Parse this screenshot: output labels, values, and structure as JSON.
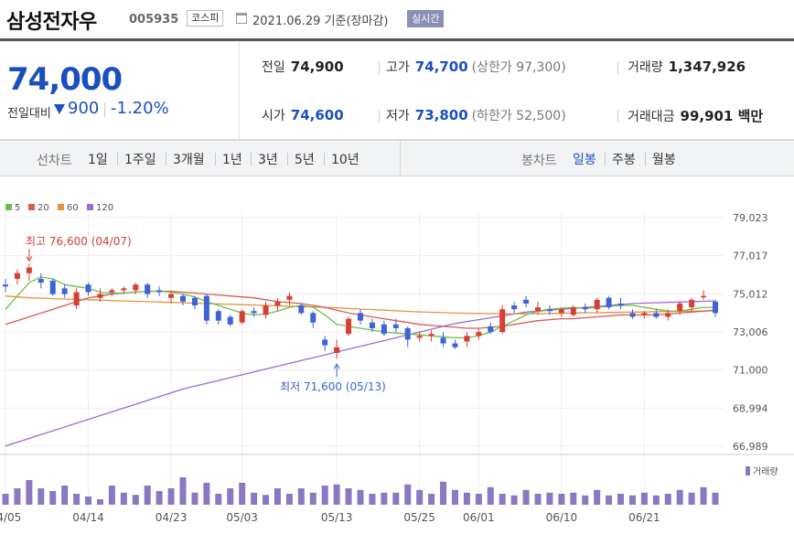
{
  "header": {
    "name": "삼성전자우",
    "code": "005935",
    "market": "코스피",
    "date_text": "2021.06.29 기준(장마감)",
    "realtime": "실시간"
  },
  "quote": {
    "price": "74,000",
    "cmp_label": "전일대비",
    "change": "900",
    "change_rate": "-1.20%",
    "prev_label": "전일",
    "prev": "74,900",
    "high_label": "고가",
    "high": "74,700",
    "upper_limit": "(상한가 97,300)",
    "volume_label": "거래량",
    "volume": "1,347,926",
    "open_label": "시가",
    "open": "74,600",
    "low_label": "저가",
    "low": "73,800",
    "lower_limit": "(하한가 52,500)",
    "amount_label": "거래대금",
    "amount": "99,901 백만"
  },
  "periods": {
    "line_label": "선차트",
    "line_items": [
      "1일",
      "1주일",
      "3개월",
      "1년",
      "3년",
      "5년",
      "10년"
    ],
    "candle_label": "봉차트",
    "candle_items": [
      "일봉",
      "주봉",
      "월봉"
    ],
    "candle_active": 0
  },
  "colors": {
    "up": "#d63f34",
    "down": "#3d63d6",
    "ma5": "#6dbf4b",
    "ma20": "#d95a4e",
    "ma60": "#e8913a",
    "ma120": "#9b6ad6",
    "volume": "#8b78c1",
    "accent": "#1b4fbf"
  },
  "chart_data": {
    "type": "candlestick",
    "legend": [
      {
        "name": "5",
        "color": "#6dbf4b"
      },
      {
        "name": "20",
        "color": "#d95a4e"
      },
      {
        "name": "60",
        "color": "#e8913a"
      },
      {
        "name": "120",
        "color": "#9b6ad6"
      }
    ],
    "y_ticks": [
      "79,023",
      "77,017",
      "75,012",
      "73,006",
      "71,000",
      "68,994",
      "66,989"
    ],
    "ylim": [
      66989,
      79023
    ],
    "x_ticks": [
      {
        "label": "04/05",
        "index": 0
      },
      {
        "label": "04/14",
        "index": 7
      },
      {
        "label": "04/23",
        "index": 14
      },
      {
        "label": "05/03",
        "index": 20
      },
      {
        "label": "05/13",
        "index": 28
      },
      {
        "label": "05/25",
        "index": 35
      },
      {
        "label": "06/01",
        "index": 40
      },
      {
        "label": "06/10",
        "index": 47
      },
      {
        "label": "06/21",
        "index": 54
      }
    ],
    "annotations": {
      "high": {
        "label": "최고",
        "text": "76,600 (04/07)",
        "index": 2,
        "value": 76600
      },
      "low": {
        "label": "최저",
        "text": "71,600 (05/13)",
        "index": 28,
        "value": 71600
      }
    },
    "volume_label": "거래량",
    "candles": [
      {
        "o": 75500,
        "h": 75800,
        "l": 75100,
        "c": 75400
      },
      {
        "o": 75800,
        "h": 76300,
        "l": 75500,
        "c": 76100
      },
      {
        "o": 76100,
        "h": 76600,
        "l": 75700,
        "c": 76400
      },
      {
        "o": 75800,
        "h": 76100,
        "l": 75300,
        "c": 75600
      },
      {
        "o": 75700,
        "h": 75800,
        "l": 74900,
        "c": 75000
      },
      {
        "o": 75300,
        "h": 75500,
        "l": 74800,
        "c": 75000
      },
      {
        "o": 74400,
        "h": 75300,
        "l": 74200,
        "c": 75100
      },
      {
        "o": 75500,
        "h": 75600,
        "l": 74900,
        "c": 75100
      },
      {
        "o": 74800,
        "h": 75300,
        "l": 74600,
        "c": 75000
      },
      {
        "o": 75100,
        "h": 75300,
        "l": 74900,
        "c": 75200
      },
      {
        "o": 75200,
        "h": 75400,
        "l": 75000,
        "c": 75300
      },
      {
        "o": 75200,
        "h": 75600,
        "l": 75000,
        "c": 75500
      },
      {
        "o": 75500,
        "h": 75600,
        "l": 74800,
        "c": 75000
      },
      {
        "o": 75200,
        "h": 75400,
        "l": 74900,
        "c": 75100
      },
      {
        "o": 74800,
        "h": 75200,
        "l": 74500,
        "c": 75000
      },
      {
        "o": 74900,
        "h": 75000,
        "l": 74400,
        "c": 74600
      },
      {
        "o": 74800,
        "h": 74900,
        "l": 74200,
        "c": 74400
      },
      {
        "o": 74900,
        "h": 75000,
        "l": 73400,
        "c": 73600
      },
      {
        "o": 74100,
        "h": 74200,
        "l": 73400,
        "c": 73600
      },
      {
        "o": 73800,
        "h": 73900,
        "l": 73300,
        "c": 73400
      },
      {
        "o": 73500,
        "h": 74200,
        "l": 73400,
        "c": 74100
      },
      {
        "o": 74100,
        "h": 74300,
        "l": 73800,
        "c": 74000
      },
      {
        "o": 73900,
        "h": 74600,
        "l": 73700,
        "c": 74400
      },
      {
        "o": 74400,
        "h": 74800,
        "l": 74100,
        "c": 74600
      },
      {
        "o": 74700,
        "h": 75100,
        "l": 74400,
        "c": 74900
      },
      {
        "o": 74400,
        "h": 74500,
        "l": 73900,
        "c": 74000
      },
      {
        "o": 74000,
        "h": 74100,
        "l": 73200,
        "c": 73500
      },
      {
        "o": 72600,
        "h": 72800,
        "l": 72000,
        "c": 72300
      },
      {
        "o": 71900,
        "h": 72600,
        "l": 71600,
        "c": 72200
      },
      {
        "o": 72900,
        "h": 73800,
        "l": 72800,
        "c": 73700
      },
      {
        "o": 74000,
        "h": 74200,
        "l": 73400,
        "c": 73600
      },
      {
        "o": 73500,
        "h": 73700,
        "l": 73000,
        "c": 73200
      },
      {
        "o": 73400,
        "h": 73600,
        "l": 72800,
        "c": 72900
      },
      {
        "o": 73400,
        "h": 73700,
        "l": 73000,
        "c": 73200
      },
      {
        "o": 73200,
        "h": 73300,
        "l": 72200,
        "c": 72600
      },
      {
        "o": 72700,
        "h": 73000,
        "l": 72500,
        "c": 72800
      },
      {
        "o": 72800,
        "h": 73100,
        "l": 72500,
        "c": 72900
      },
      {
        "o": 72700,
        "h": 73000,
        "l": 72200,
        "c": 72400
      },
      {
        "o": 72400,
        "h": 72600,
        "l": 72100,
        "c": 72200
      },
      {
        "o": 72500,
        "h": 73000,
        "l": 72200,
        "c": 72800
      },
      {
        "o": 72800,
        "h": 73200,
        "l": 72600,
        "c": 73000
      },
      {
        "o": 73300,
        "h": 73500,
        "l": 72900,
        "c": 73000
      },
      {
        "o": 73000,
        "h": 74400,
        "l": 72900,
        "c": 74200
      },
      {
        "o": 74400,
        "h": 74600,
        "l": 74000,
        "c": 74200
      },
      {
        "o": 74700,
        "h": 74900,
        "l": 74300,
        "c": 74500
      },
      {
        "o": 74100,
        "h": 74600,
        "l": 73900,
        "c": 74300
      },
      {
        "o": 74200,
        "h": 74400,
        "l": 73900,
        "c": 74100
      },
      {
        "o": 74000,
        "h": 74300,
        "l": 73800,
        "c": 74200
      },
      {
        "o": 73900,
        "h": 74400,
        "l": 73800,
        "c": 74300
      },
      {
        "o": 74300,
        "h": 74500,
        "l": 74000,
        "c": 74200
      },
      {
        "o": 74200,
        "h": 74800,
        "l": 74000,
        "c": 74700
      },
      {
        "o": 74800,
        "h": 74900,
        "l": 74200,
        "c": 74300
      },
      {
        "o": 74500,
        "h": 74800,
        "l": 74200,
        "c": 74400
      },
      {
        "o": 74000,
        "h": 74200,
        "l": 73700,
        "c": 73800
      },
      {
        "o": 73900,
        "h": 74100,
        "l": 73700,
        "c": 74000
      },
      {
        "o": 74000,
        "h": 74200,
        "l": 73700,
        "c": 73800
      },
      {
        "o": 73800,
        "h": 74200,
        "l": 73600,
        "c": 74000
      },
      {
        "o": 74100,
        "h": 74600,
        "l": 73900,
        "c": 74500
      },
      {
        "o": 74300,
        "h": 74800,
        "l": 74100,
        "c": 74700
      },
      {
        "o": 74900,
        "h": 75200,
        "l": 74700,
        "c": 74900
      },
      {
        "o": 74600,
        "h": 74700,
        "l": 73800,
        "c": 74000
      }
    ],
    "volume": [
      0.2,
      0.3,
      0.45,
      0.3,
      0.25,
      0.35,
      0.2,
      0.15,
      0.1,
      0.35,
      0.22,
      0.18,
      0.35,
      0.25,
      0.3,
      0.5,
      0.22,
      0.4,
      0.2,
      0.3,
      0.4,
      0.22,
      0.18,
      0.3,
      0.2,
      0.3,
      0.22,
      0.35,
      0.37,
      0.3,
      0.27,
      0.2,
      0.22,
      0.22,
      0.37,
      0.27,
      0.2,
      0.42,
      0.27,
      0.22,
      0.2,
      0.32,
      0.2,
      0.17,
      0.27,
      0.2,
      0.22,
      0.2,
      0.22,
      0.17,
      0.27,
      0.17,
      0.2,
      0.17,
      0.22,
      0.17,
      0.2,
      0.27,
      0.22,
      0.32,
      0.22
    ],
    "ma5": [
      74200,
      74900,
      75600,
      75900,
      75800,
      75500,
      75400,
      75300,
      75100,
      75050,
      75050,
      75100,
      75150,
      75150,
      75100,
      75000,
      74850,
      74600,
      74400,
      74200,
      74000,
      73900,
      73950,
      74100,
      74300,
      74400,
      74300,
      73900,
      73400,
      73300,
      73200,
      73100,
      73000,
      72950,
      72900,
      72850,
      72800,
      72750,
      72700,
      72700,
      72800,
      73000,
      73300,
      73600,
      73900,
      74100,
      74200,
      74250,
      74300,
      74250,
      74300,
      74350,
      74400,
      74400,
      74300,
      74200,
      74100,
      74100,
      74200,
      74300,
      74300
    ],
    "ma20": [
      73400,
      73600,
      73800,
      74000,
      74200,
      74400,
      74600,
      74800,
      74900,
      75000,
      75050,
      75100,
      75150,
      75150,
      75150,
      75100,
      75050,
      75000,
      74950,
      74900,
      74850,
      74800,
      74700,
      74600,
      74550,
      74500,
      74400,
      74300,
      74150,
      74000,
      73900,
      73800,
      73700,
      73600,
      73500,
      73400,
      73350,
      73300,
      73250,
      73200,
      73200,
      73250,
      73300,
      73400,
      73500,
      73600,
      73650,
      73700,
      73700,
      73750,
      73800,
      73850,
      73900,
      73900,
      73900,
      73900,
      73950,
      74000,
      74050,
      74100,
      74150
    ],
    "ma60": [
      74900,
      74850,
      74800,
      74780,
      74760,
      74740,
      74720,
      74700,
      74680,
      74660,
      74640,
      74620,
      74600,
      74580,
      74560,
      74540,
      74520,
      74500,
      74480,
      74460,
      74440,
      74420,
      74400,
      74380,
      74360,
      74340,
      74320,
      74300,
      74270,
      74240,
      74210,
      74180,
      74150,
      74120,
      74090,
      74060,
      74040,
      74020,
      74000,
      73990,
      73980,
      73970,
      73960,
      73960,
      73960,
      73970,
      73980,
      73990,
      74000,
      74010,
      74020,
      74030,
      74040,
      74050,
      74060,
      74070,
      74080,
      74090,
      74100,
      74110,
      74120
    ],
    "ma120": [
      67000,
      67200,
      67400,
      67600,
      67800,
      68000,
      68200,
      68400,
      68600,
      68800,
      69000,
      69200,
      69400,
      69600,
      69800,
      70000,
      70150,
      70300,
      70450,
      70600,
      70750,
      70900,
      71050,
      71200,
      71350,
      71500,
      71650,
      71800,
      71950,
      72100,
      72250,
      72400,
      72550,
      72700,
      72850,
      73000,
      73150,
      73300,
      73450,
      73550,
      73650,
      73750,
      73850,
      73950,
      74050,
      74100,
      74150,
      74200,
      74250,
      74300,
      74350,
      74400,
      74450,
      74500,
      74520,
      74540,
      74560,
      74580,
      74600,
      74620,
      74640
    ]
  }
}
